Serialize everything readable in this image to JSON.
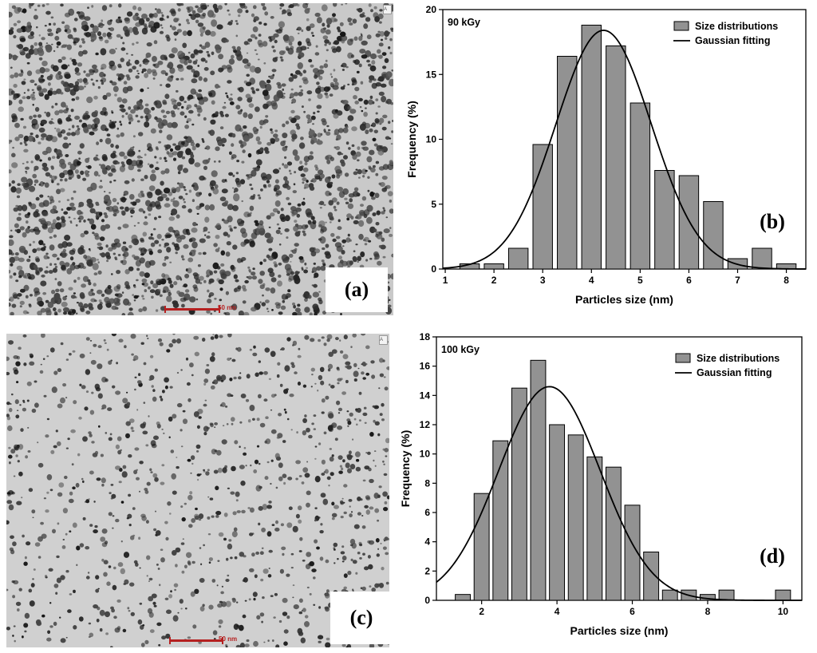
{
  "tem": [
    {
      "panel_label": "(a)",
      "scale_label": "50 nm",
      "corner_tag": "A"
    },
    {
      "panel_label": "(c)",
      "scale_label": "50 nm",
      "corner_tag": "A"
    }
  ],
  "colors": {
    "bar_fill": "#929292",
    "bar_stroke": "#000000",
    "curve": "#000000"
  },
  "chart_data": [
    {
      "type": "bar",
      "panel_label": "(b)",
      "annotation": "90 kGy",
      "xlabel": "Particles size (nm)",
      "ylabel": "Frequency (%)",
      "xlim": [
        0.95,
        8.4
      ],
      "ylim": [
        0,
        20
      ],
      "xticks": [
        1,
        2,
        3,
        4,
        5,
        6,
        7,
        8
      ],
      "yticks": [
        0,
        5,
        10,
        15,
        20
      ],
      "bar_width": 0.4,
      "bar_centers": [
        1.5,
        2.0,
        2.5,
        3.0,
        3.5,
        4.0,
        4.5,
        5.0,
        5.5,
        6.0,
        6.5,
        7.0,
        7.5,
        8.0
      ],
      "legend": {
        "position": "top-right",
        "bars_label": "Size distributions",
        "curve_label": "Gaussian fitting"
      },
      "series": [
        {
          "name": "Size distributions",
          "values": [
            0.4,
            0.4,
            1.6,
            9.6,
            16.4,
            18.8,
            17.2,
            12.8,
            7.6,
            7.2,
            5.2,
            0.8,
            1.6,
            0.4
          ]
        },
        {
          "name": "Gaussian fitting",
          "kind": "gaussian",
          "amplitude": 18.4,
          "mean": 4.25,
          "sigma": 0.98
        }
      ]
    },
    {
      "type": "bar",
      "panel_label": "(d)",
      "annotation": "100 kGy",
      "xlabel": "Particles size (nm)",
      "ylabel": "Frequency (%)",
      "xlim": [
        0.8,
        10.5
      ],
      "ylim": [
        0,
        18
      ],
      "xticks": [
        2,
        4,
        6,
        8,
        10
      ],
      "yticks": [
        0,
        2,
        4,
        6,
        8,
        10,
        12,
        14,
        16,
        18
      ],
      "bar_width": 0.4,
      "bar_centers": [
        1.5,
        2.0,
        2.5,
        3.0,
        3.5,
        4.0,
        4.5,
        5.0,
        5.5,
        6.0,
        6.5,
        7.0,
        7.5,
        8.0,
        8.5,
        10.0
      ],
      "legend": {
        "position": "top-right",
        "bars_label": "Size distributions",
        "curve_label": "Gaussian fitting"
      },
      "series": [
        {
          "name": "Size distributions",
          "values": [
            0.4,
            7.3,
            10.9,
            14.5,
            16.4,
            12.0,
            11.3,
            9.8,
            9.1,
            6.5,
            3.3,
            0.7,
            0.7,
            0.4,
            0.7,
            0.7
          ]
        },
        {
          "name": "Gaussian fitting",
          "kind": "gaussian",
          "amplitude": 14.6,
          "mean": 3.8,
          "sigma": 1.35
        }
      ]
    }
  ]
}
